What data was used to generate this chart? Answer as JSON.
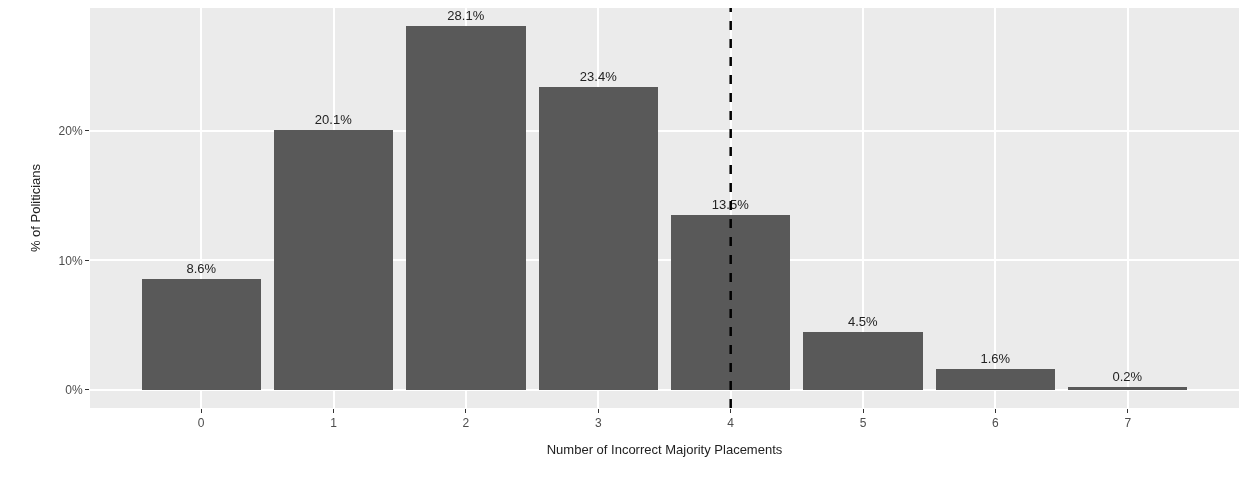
{
  "chart_data": {
    "type": "bar",
    "xlabel": "Number of Incorrect Majority Placements",
    "ylabel": "% of Politicians",
    "x": [
      0,
      1,
      2,
      3,
      4,
      5,
      6,
      7
    ],
    "values": [
      8.6,
      20.1,
      28.1,
      23.4,
      13.5,
      4.5,
      1.6,
      0.2
    ],
    "value_labels": [
      "8.6%",
      "20.1%",
      "28.1%",
      "23.4%",
      "13.5%",
      "4.5%",
      "1.6%",
      "0.2%"
    ],
    "color": "#595959",
    "xlim": [
      -0.84,
      7.84
    ],
    "xticks": [
      0,
      1,
      2,
      3,
      4,
      5,
      6,
      7
    ],
    "ylim": [
      -1.4,
      29.5
    ],
    "yticks": [
      {
        "value": 0,
        "label": "0%"
      },
      {
        "value": 10,
        "label": "10%"
      },
      {
        "value": 20,
        "label": "20%"
      }
    ],
    "ref_lines": [
      {
        "axis": "x",
        "value": 4,
        "line_style": "dashed",
        "color": "#000000"
      }
    ],
    "grid": true
  }
}
